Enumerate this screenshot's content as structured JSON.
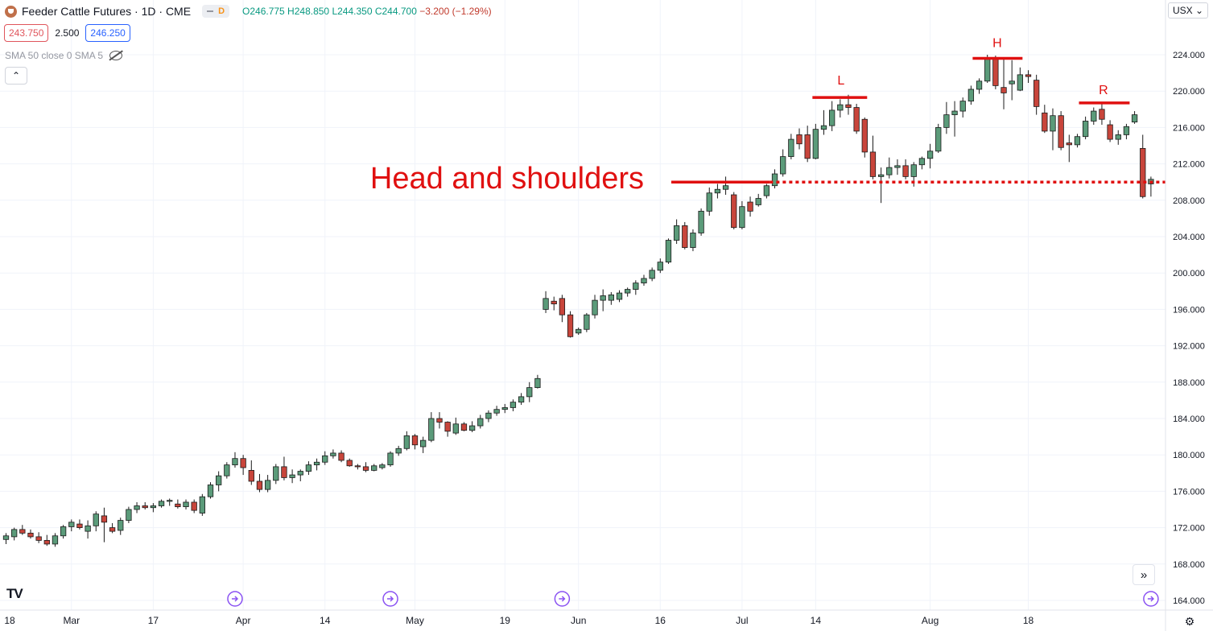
{
  "header": {
    "symbol": "Feeder Cattle Futures · 1D · CME",
    "pill_letter": "D",
    "ohlc_main": "O246.775 H248.850 L244.350 C244.700",
    "change": "−3.200 (−1.29%)"
  },
  "prices": {
    "sell": "243.750",
    "spread": "2.500",
    "buy": "246.250"
  },
  "indicator": {
    "label": "SMA 50 close 0 SMA 5"
  },
  "collapse_glyph": "⌃",
  "currency": {
    "value": "USX",
    "chevron": "⌄"
  },
  "logo_text": "TV",
  "scroll_glyph": "»",
  "gear_glyph": "⚙",
  "colors": {
    "up": "#5b9b7a",
    "down": "#c8453b",
    "annotation": "#e01010",
    "grid": "#f0f3fa",
    "event": "#8a52f2"
  },
  "annotation": {
    "title": "Head and shoulders",
    "left_shoulder": "L",
    "head": "H",
    "right_shoulder": "R",
    "neckline_price": 210.0
  },
  "chart_data": {
    "type": "candlestick",
    "title": "Feeder Cattle Futures · 1D · CME",
    "y_range": [
      164,
      226
    ],
    "y_ticks": [
      "164.000",
      "168.000",
      "172.000",
      "176.000",
      "180.000",
      "184.000",
      "188.000",
      "192.000",
      "196.000",
      "200.000",
      "204.000",
      "208.000",
      "212.000",
      "216.000",
      "220.000",
      "224.000"
    ],
    "x_labels": [
      {
        "label": "18",
        "bar": -1
      },
      {
        "label": "Mar",
        "bar": 8
      },
      {
        "label": "17",
        "bar": 18
      },
      {
        "label": "Apr",
        "bar": 29
      },
      {
        "label": "14",
        "bar": 39
      },
      {
        "label": "May",
        "bar": 50
      },
      {
        "label": "19",
        "bar": 61
      },
      {
        "label": "Jun",
        "bar": 70
      },
      {
        "label": "16",
        "bar": 80
      },
      {
        "label": "Jul",
        "bar": 90
      },
      {
        "label": "14",
        "bar": 99
      },
      {
        "label": "Aug",
        "bar": 113
      },
      {
        "label": "18",
        "bar": 125
      }
    ],
    "candles": [
      [
        170.7,
        171.4,
        170.2,
        171.1
      ],
      [
        171.0,
        172.0,
        170.6,
        171.8
      ],
      [
        171.8,
        172.3,
        171.2,
        171.4
      ],
      [
        171.4,
        171.8,
        170.8,
        171.0
      ],
      [
        171.0,
        171.5,
        170.3,
        170.6
      ],
      [
        170.6,
        171.2,
        170.0,
        170.2
      ],
      [
        170.2,
        171.4,
        169.9,
        171.1
      ],
      [
        171.1,
        172.3,
        170.8,
        172.1
      ],
      [
        172.1,
        172.9,
        171.6,
        172.6
      ],
      [
        172.4,
        172.9,
        171.8,
        172.0
      ],
      [
        171.6,
        172.8,
        170.8,
        172.2
      ],
      [
        172.2,
        173.8,
        171.6,
        173.5
      ],
      [
        173.3,
        174.2,
        170.4,
        172.6
      ],
      [
        172.0,
        172.5,
        171.4,
        171.6
      ],
      [
        171.7,
        173.1,
        171.2,
        172.8
      ],
      [
        172.8,
        174.3,
        172.5,
        174.0
      ],
      [
        174.0,
        174.8,
        173.6,
        174.4
      ],
      [
        174.4,
        174.8,
        174.0,
        174.2
      ],
      [
        174.2,
        174.7,
        173.7,
        174.4
      ],
      [
        174.4,
        175.1,
        174.2,
        174.9
      ],
      [
        174.9,
        175.2,
        174.4,
        175.0
      ],
      [
        174.6,
        175.1,
        174.1,
        174.3
      ],
      [
        174.3,
        175.1,
        174.0,
        174.8
      ],
      [
        174.8,
        175.1,
        173.6,
        173.9
      ],
      [
        173.6,
        175.7,
        173.3,
        175.4
      ],
      [
        175.4,
        177.0,
        175.2,
        176.7
      ],
      [
        176.7,
        178.2,
        176.0,
        177.7
      ],
      [
        177.7,
        179.2,
        177.4,
        178.9
      ],
      [
        178.9,
        180.3,
        178.6,
        179.6
      ],
      [
        179.6,
        180.0,
        177.8,
        178.6
      ],
      [
        178.3,
        179.4,
        176.7,
        177.1
      ],
      [
        177.1,
        177.9,
        175.9,
        176.2
      ],
      [
        176.2,
        177.8,
        175.9,
        177.2
      ],
      [
        177.2,
        179.0,
        176.8,
        178.7
      ],
      [
        178.7,
        179.8,
        177.2,
        177.5
      ],
      [
        177.5,
        178.4,
        176.9,
        177.8
      ],
      [
        177.8,
        178.4,
        177.1,
        178.2
      ],
      [
        178.2,
        179.3,
        177.8,
        178.9
      ],
      [
        178.9,
        179.6,
        178.3,
        179.2
      ],
      [
        179.2,
        180.4,
        178.9,
        179.9
      ],
      [
        179.9,
        180.6,
        179.6,
        180.2
      ],
      [
        180.2,
        180.5,
        179.2,
        179.4
      ],
      [
        179.4,
        179.6,
        178.7,
        178.8
      ],
      [
        178.8,
        179.0,
        178.4,
        178.7
      ],
      [
        178.7,
        179.2,
        178.1,
        178.3
      ],
      [
        178.3,
        179.0,
        178.2,
        178.8
      ],
      [
        178.6,
        179.1,
        178.4,
        178.9
      ],
      [
        178.9,
        180.4,
        178.7,
        180.2
      ],
      [
        180.2,
        181.0,
        179.9,
        180.7
      ],
      [
        180.7,
        182.6,
        180.5,
        182.1
      ],
      [
        182.1,
        182.3,
        180.6,
        181.1
      ],
      [
        180.9,
        182.0,
        180.2,
        181.6
      ],
      [
        181.6,
        184.7,
        181.4,
        184.0
      ],
      [
        184.0,
        184.7,
        182.9,
        183.6
      ],
      [
        183.6,
        183.7,
        182.0,
        182.6
      ],
      [
        182.4,
        184.1,
        182.2,
        183.4
      ],
      [
        183.4,
        183.6,
        182.6,
        182.7
      ],
      [
        182.7,
        183.7,
        182.5,
        183.2
      ],
      [
        183.2,
        184.4,
        182.9,
        184.0
      ],
      [
        184.0,
        184.9,
        183.6,
        184.6
      ],
      [
        184.6,
        185.4,
        184.3,
        185.0
      ],
      [
        185.0,
        185.6,
        184.6,
        185.2
      ],
      [
        185.2,
        186.1,
        184.8,
        185.8
      ],
      [
        185.8,
        186.8,
        185.5,
        186.4
      ],
      [
        186.4,
        188.0,
        185.8,
        187.4
      ],
      [
        187.4,
        188.8,
        187.3,
        188.4
      ],
      [
        196.0,
        198.0,
        195.6,
        197.2
      ],
      [
        196.9,
        197.4,
        195.9,
        196.6
      ],
      [
        197.2,
        197.6,
        194.6,
        195.4
      ],
      [
        195.4,
        195.8,
        192.9,
        193.0
      ],
      [
        193.4,
        194.0,
        193.2,
        193.8
      ],
      [
        193.8,
        195.6,
        193.5,
        195.4
      ],
      [
        195.4,
        197.6,
        195.0,
        197.0
      ],
      [
        197.0,
        198.2,
        195.8,
        197.5
      ],
      [
        197.0,
        197.9,
        196.5,
        197.6
      ],
      [
        197.1,
        198.1,
        196.8,
        197.8
      ],
      [
        197.8,
        198.4,
        197.4,
        198.2
      ],
      [
        198.2,
        199.2,
        197.6,
        198.9
      ],
      [
        198.9,
        199.8,
        198.6,
        199.4
      ],
      [
        199.4,
        200.6,
        199.1,
        200.3
      ],
      [
        200.3,
        201.6,
        200.0,
        201.2
      ],
      [
        201.2,
        203.8,
        201.0,
        203.6
      ],
      [
        203.6,
        205.9,
        203.2,
        205.2
      ],
      [
        205.2,
        205.6,
        202.6,
        202.8
      ],
      [
        202.8,
        204.8,
        202.4,
        204.4
      ],
      [
        204.4,
        207.1,
        204.1,
        206.8
      ],
      [
        206.8,
        209.4,
        206.3,
        208.8
      ],
      [
        208.8,
        209.8,
        208.2,
        209.2
      ],
      [
        209.2,
        210.6,
        208.6,
        209.6
      ],
      [
        208.6,
        208.9,
        204.8,
        205.0
      ],
      [
        205.0,
        207.9,
        204.8,
        207.3
      ],
      [
        207.8,
        208.4,
        206.2,
        206.8
      ],
      [
        207.5,
        208.7,
        207.3,
        208.2
      ],
      [
        208.5,
        209.8,
        208.2,
        209.6
      ],
      [
        209.6,
        211.4,
        209.3,
        210.9
      ],
      [
        210.9,
        213.6,
        210.6,
        212.8
      ],
      [
        212.8,
        215.3,
        212.5,
        214.7
      ],
      [
        215.2,
        215.9,
        213.6,
        214.2
      ],
      [
        215.2,
        216.2,
        212.2,
        212.6
      ],
      [
        212.6,
        216.4,
        212.5,
        215.8
      ],
      [
        215.8,
        217.9,
        215.2,
        216.2
      ],
      [
        216.2,
        218.9,
        215.6,
        217.9
      ],
      [
        217.9,
        219.1,
        217.1,
        218.5
      ],
      [
        218.5,
        219.6,
        217.4,
        218.2
      ],
      [
        218.2,
        218.6,
        215.3,
        215.6
      ],
      [
        216.9,
        217.1,
        212.7,
        213.3
      ],
      [
        213.3,
        215.1,
        210.3,
        210.6
      ],
      [
        210.6,
        211.6,
        207.7,
        210.8
      ],
      [
        210.8,
        212.7,
        210.4,
        211.6
      ],
      [
        211.6,
        212.5,
        210.8,
        211.8
      ],
      [
        211.8,
        212.5,
        210.3,
        210.6
      ],
      [
        210.6,
        212.2,
        209.5,
        211.9
      ],
      [
        211.9,
        212.8,
        211.4,
        212.6
      ],
      [
        212.6,
        214.2,
        211.5,
        213.4
      ],
      [
        213.4,
        216.4,
        213.2,
        216.0
      ],
      [
        216.0,
        218.8,
        215.3,
        217.4
      ],
      [
        217.4,
        218.9,
        215.0,
        217.8
      ],
      [
        217.8,
        219.3,
        217.1,
        218.9
      ],
      [
        218.9,
        220.6,
        218.5,
        220.2
      ],
      [
        220.2,
        221.4,
        219.7,
        221.1
      ],
      [
        221.1,
        224.0,
        220.9,
        223.5
      ],
      [
        223.5,
        223.9,
        220.2,
        220.6
      ],
      [
        220.4,
        223.7,
        218.0,
        219.8
      ],
      [
        220.8,
        223.4,
        219.0,
        221.1
      ],
      [
        220.1,
        222.6,
        220.0,
        221.8
      ],
      [
        221.8,
        222.3,
        220.9,
        221.6
      ],
      [
        221.2,
        221.8,
        217.4,
        218.3
      ],
      [
        217.6,
        218.5,
        215.4,
        215.6
      ],
      [
        215.6,
        218.1,
        213.5,
        217.3
      ],
      [
        217.3,
        217.8,
        213.5,
        213.8
      ],
      [
        214.3,
        215.2,
        212.2,
        214.1
      ],
      [
        214.1,
        215.3,
        213.8,
        215.0
      ],
      [
        215.0,
        217.2,
        214.7,
        216.7
      ],
      [
        216.7,
        218.2,
        216.3,
        217.8
      ],
      [
        218.0,
        218.7,
        216.3,
        216.9
      ],
      [
        216.3,
        216.8,
        214.4,
        214.7
      ],
      [
        214.7,
        215.7,
        214.1,
        215.2
      ],
      [
        215.2,
        216.4,
        214.7,
        216.1
      ],
      [
        216.6,
        217.8,
        216.4,
        217.4
      ],
      [
        213.7,
        215.2,
        208.2,
        208.4
      ],
      [
        209.8,
        210.6,
        208.4,
        210.3
      ]
    ]
  }
}
